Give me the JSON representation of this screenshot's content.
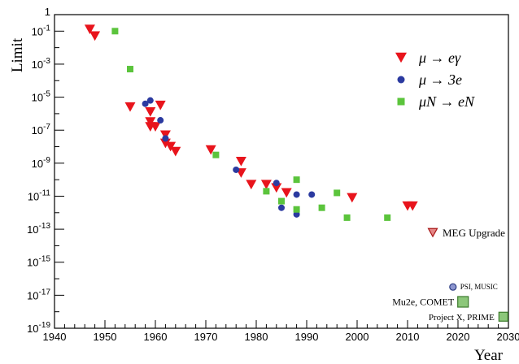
{
  "chart_data": {
    "type": "scatter",
    "xlabel": "Year",
    "ylabel": "Limit",
    "xlim": [
      1940,
      2030
    ],
    "ylim_log10": [
      -19,
      0
    ],
    "y_scale": "log",
    "grid": false,
    "legend_position": "top-right",
    "x_ticks": [
      "1940",
      "1950",
      "1960",
      "1970",
      "1980",
      "1990",
      "2000",
      "2010",
      "2020",
      "2030"
    ],
    "y_ticks": [
      {
        "label": "1",
        "exp": null,
        "value": 0
      },
      {
        "label": "10",
        "exp": "-1",
        "value": -1
      },
      {
        "label": "10",
        "exp": "-3",
        "value": -3
      },
      {
        "label": "10",
        "exp": "-5",
        "value": -5
      },
      {
        "label": "10",
        "exp": "-7",
        "value": -7
      },
      {
        "label": "10",
        "exp": "-9",
        "value": -9
      },
      {
        "label": "10",
        "exp": "-11",
        "value": -11
      },
      {
        "label": "10",
        "exp": "-13",
        "value": -13
      },
      {
        "label": "10",
        "exp": "-15",
        "value": -15
      },
      {
        "label": "10",
        "exp": "-17",
        "value": -17
      },
      {
        "label": "10",
        "exp": "-19",
        "value": -19
      }
    ],
    "series": [
      {
        "name": "μ → eγ",
        "marker": "triangle-down",
        "color": "#e8141c",
        "points": [
          [
            1947,
            -0.9
          ],
          [
            1948,
            -1.3
          ],
          [
            1955,
            -5.6
          ],
          [
            1959,
            -5.9
          ],
          [
            1959,
            -6.5
          ],
          [
            1959,
            -6.8
          ],
          [
            1960,
            -6.8
          ],
          [
            1961,
            -5.5
          ],
          [
            1962,
            -7.3
          ],
          [
            1962,
            -7.8
          ],
          [
            1963,
            -8.0
          ],
          [
            1964,
            -8.3
          ],
          [
            1971,
            -8.2
          ],
          [
            1977,
            -8.9
          ],
          [
            1977,
            -9.6
          ],
          [
            1979,
            -10.3
          ],
          [
            1982,
            -10.3
          ],
          [
            1984,
            -10.5
          ],
          [
            1986,
            -10.8
          ],
          [
            1999,
            -11.1
          ],
          [
            2010,
            -11.6
          ],
          [
            2011,
            -11.6
          ]
        ]
      },
      {
        "name": "μ → 3e",
        "marker": "circle",
        "color": "#2b3aa0",
        "points": [
          [
            1958,
            -5.4
          ],
          [
            1959,
            -5.2
          ],
          [
            1961,
            -6.4
          ],
          [
            1962,
            -7.5
          ],
          [
            1976,
            -9.4
          ],
          [
            1984,
            -10.2
          ],
          [
            1985,
            -11.7
          ],
          [
            1988,
            -10.9
          ],
          [
            1988,
            -12.1
          ],
          [
            1991,
            -10.9
          ]
        ]
      },
      {
        "name": "μN → eN",
        "marker": "square",
        "color": "#5bc43c",
        "points": [
          [
            1952,
            -1.0
          ],
          [
            1955,
            -3.3
          ],
          [
            1972,
            -8.5
          ],
          [
            1982,
            -10.7
          ],
          [
            1985,
            -11.3
          ],
          [
            1988,
            -10.0
          ],
          [
            1988,
            -11.8
          ],
          [
            1993,
            -11.7
          ],
          [
            1996,
            -10.8
          ],
          [
            1998,
            -12.3
          ],
          [
            2006,
            -12.3
          ]
        ]
      }
    ],
    "projections": [
      {
        "label": "MEG Upgrade",
        "year": 2015,
        "log10": -13.2,
        "marker": "triangle-down",
        "fill": "#e58686",
        "stroke": "#a81818",
        "size": 11
      },
      {
        "label": "PSI, MUSIC",
        "year": 2019,
        "log10": -16.5,
        "marker": "circle",
        "fill": "#8c95cf",
        "stroke": "#2a3a80",
        "size": 8
      },
      {
        "label": "Mu2e, COMET",
        "year": 2021,
        "log10": -17.4,
        "marker": "square",
        "fill": "#8cc77a",
        "stroke": "#3c7a2c",
        "size": 13
      },
      {
        "label": "Project X, PRIME",
        "year": 2029,
        "log10": -18.3,
        "marker": "square",
        "fill": "#8cc77a",
        "stroke": "#3c7a2c",
        "size": 11
      }
    ]
  }
}
